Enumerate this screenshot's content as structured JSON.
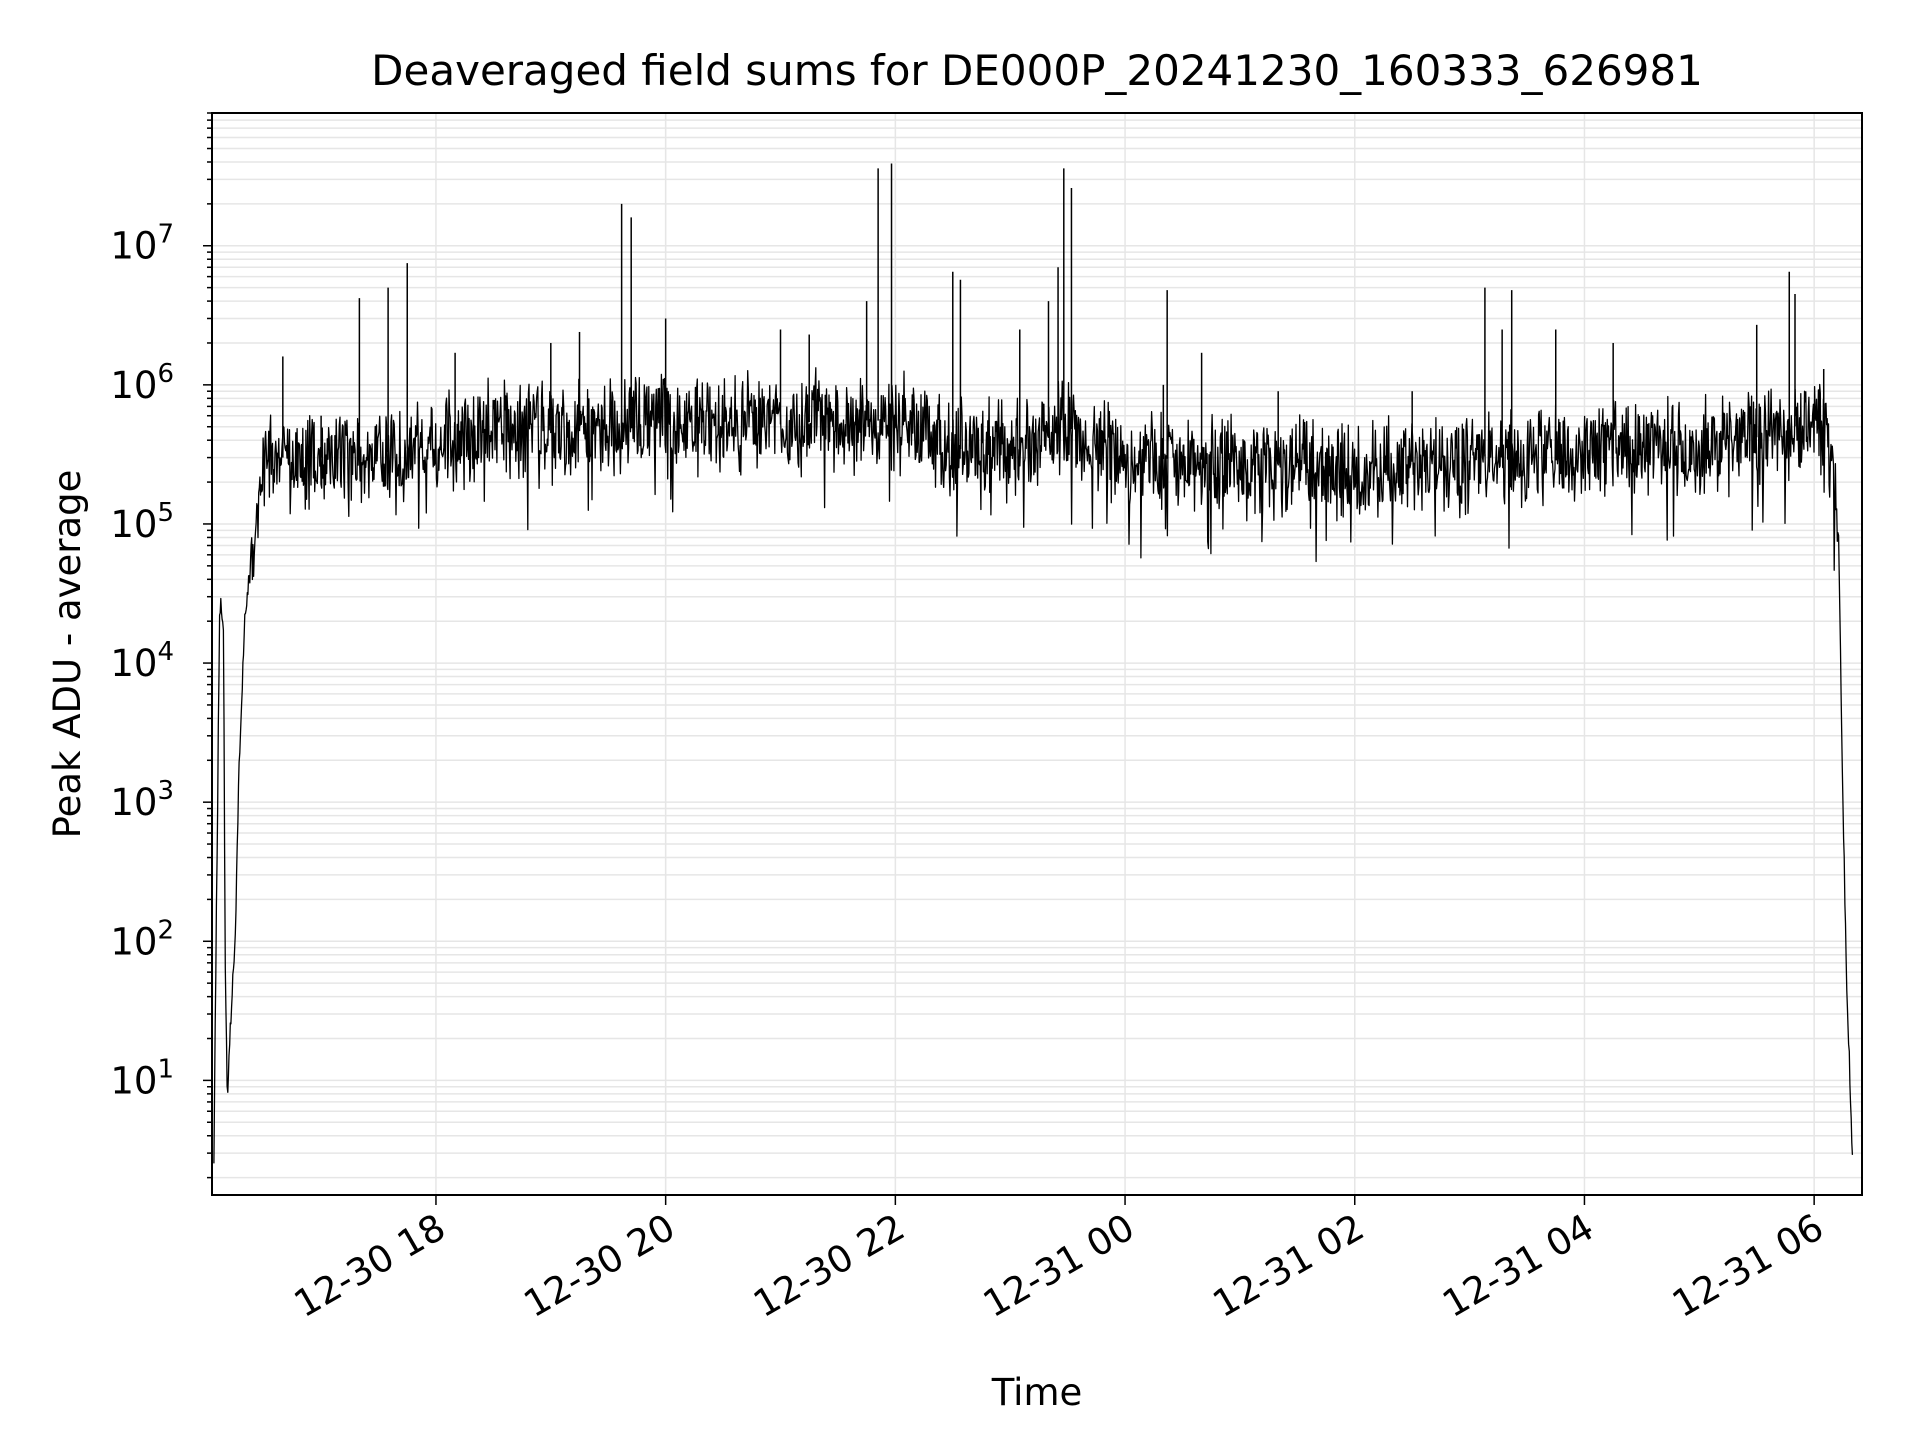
{
  "chart_data": {
    "type": "line",
    "title": "Deaveraged field sums for DE000P_20241230_160333_626981",
    "xlabel": "Time",
    "ylabel": "Peak ADU - average",
    "yscale": "log",
    "xlim": [
      "2024-12-30 16:03",
      "2024-12-31 06:25"
    ],
    "ylim": [
      1.5,
      90000000
    ],
    "grid": true,
    "legend": "none",
    "x_ticks": [
      "12-30 18",
      "12-30 20",
      "12-30 22",
      "12-31 00",
      "12-31 02",
      "12-31 04",
      "12-31 06"
    ],
    "y_ticks": [
      "10^1",
      "10^2",
      "10^3",
      "10^4",
      "10^5",
      "10^6",
      "10^7"
    ],
    "colors": {
      "line": "#000000",
      "grid": "#e6e6e6",
      "background": "#ffffff"
    },
    "series": [
      {
        "name": "",
        "x": [
          "2024-12-30 16:04",
          "2024-12-30 16:07",
          "2024-12-30 16:09",
          "2024-12-30 16:10",
          "2024-12-30 16:11",
          "2024-12-30 16:13",
          "2024-12-30 16:15",
          "2024-12-30 16:17",
          "2024-12-30 16:20",
          "2024-12-30 16:25",
          "2024-12-30 16:30",
          "2024-12-30 16:40",
          "2024-12-30 16:50",
          "2024-12-30 17:00",
          "2024-12-30 17:30",
          "2024-12-30 18:00",
          "2024-12-30 18:30",
          "2024-12-30 19:00",
          "2024-12-30 19:30",
          "2024-12-30 20:00",
          "2024-12-30 20:30",
          "2024-12-30 21:00",
          "2024-12-30 21:30",
          "2024-12-30 22:00",
          "2024-12-30 22:30",
          "2024-12-30 23:00",
          "2024-12-30 23:30",
          "2024-12-31 00:00",
          "2024-12-31 00:30",
          "2024-12-31 01:00",
          "2024-12-31 01:30",
          "2024-12-31 02:00",
          "2024-12-31 02:30",
          "2024-12-31 03:00",
          "2024-12-31 03:30",
          "2024-12-31 04:00",
          "2024-12-31 04:30",
          "2024-12-31 05:00",
          "2024-12-31 05:30",
          "2024-12-31 06:00",
          "2024-12-31 06:10",
          "2024-12-31 06:13",
          "2024-12-31 06:15",
          "2024-12-31 06:17",
          "2024-12-31 06:20"
        ],
        "y": [
          3,
          25000,
          20000,
          50,
          8,
          30,
          100,
          1500,
          20000,
          80000,
          250000,
          300000,
          280000,
          300000,
          320000,
          380000,
          450000,
          450000,
          480000,
          550000,
          500000,
          520000,
          560000,
          550000,
          350000,
          320000,
          500000,
          280000,
          300000,
          270000,
          260000,
          240000,
          280000,
          300000,
          320000,
          330000,
          350000,
          380000,
          420000,
          550000,
          300000,
          50000,
          1000,
          50,
          3
        ]
      }
    ],
    "noise_band_factor": 2.2,
    "spikes": [
      {
        "x": "2024-12-30 16:40",
        "y": 1600000
      },
      {
        "x": "2024-12-30 17:00",
        "y": 600000
      },
      {
        "x": "2024-12-30 17:20",
        "y": 4200000
      },
      {
        "x": "2024-12-30 17:35",
        "y": 5000000
      },
      {
        "x": "2024-12-30 17:45",
        "y": 7500000
      },
      {
        "x": "2024-12-30 18:10",
        "y": 1700000
      },
      {
        "x": "2024-12-30 19:00",
        "y": 2000000
      },
      {
        "x": "2024-12-30 19:15",
        "y": 2400000
      },
      {
        "x": "2024-12-30 19:37",
        "y": 20000000
      },
      {
        "x": "2024-12-30 19:42",
        "y": 16000000
      },
      {
        "x": "2024-12-30 20:00",
        "y": 3000000
      },
      {
        "x": "2024-12-30 21:00",
        "y": 2500000
      },
      {
        "x": "2024-12-30 21:15",
        "y": 2300000
      },
      {
        "x": "2024-12-30 21:45",
        "y": 4000000
      },
      {
        "x": "2024-12-30 21:51",
        "y": 36000000
      },
      {
        "x": "2024-12-30 21:58",
        "y": 39000000
      },
      {
        "x": "2024-12-30 22:30",
        "y": 6500000
      },
      {
        "x": "2024-12-30 22:34",
        "y": 5700000
      },
      {
        "x": "2024-12-30 23:05",
        "y": 2500000
      },
      {
        "x": "2024-12-30 23:20",
        "y": 4000000
      },
      {
        "x": "2024-12-30 23:25",
        "y": 7000000
      },
      {
        "x": "2024-12-30 23:28",
        "y": 36000000
      },
      {
        "x": "2024-12-30 23:32",
        "y": 26000000
      },
      {
        "x": "2024-12-31 00:20",
        "y": 1000000
      },
      {
        "x": "2024-12-31 00:22",
        "y": 4800000
      },
      {
        "x": "2024-12-31 00:40",
        "y": 1700000
      },
      {
        "x": "2024-12-31 01:20",
        "y": 900000
      },
      {
        "x": "2024-12-31 02:30",
        "y": 900000
      },
      {
        "x": "2024-12-31 03:08",
        "y": 5000000
      },
      {
        "x": "2024-12-31 03:17",
        "y": 2500000
      },
      {
        "x": "2024-12-31 03:22",
        "y": 4800000
      },
      {
        "x": "2024-12-31 03:45",
        "y": 2500000
      },
      {
        "x": "2024-12-31 04:15",
        "y": 2000000
      },
      {
        "x": "2024-12-31 05:30",
        "y": 2700000
      },
      {
        "x": "2024-12-31 05:47",
        "y": 6500000
      },
      {
        "x": "2024-12-31 05:50",
        "y": 4500000
      },
      {
        "x": "2024-12-31 06:05",
        "y": 1300000
      }
    ]
  }
}
